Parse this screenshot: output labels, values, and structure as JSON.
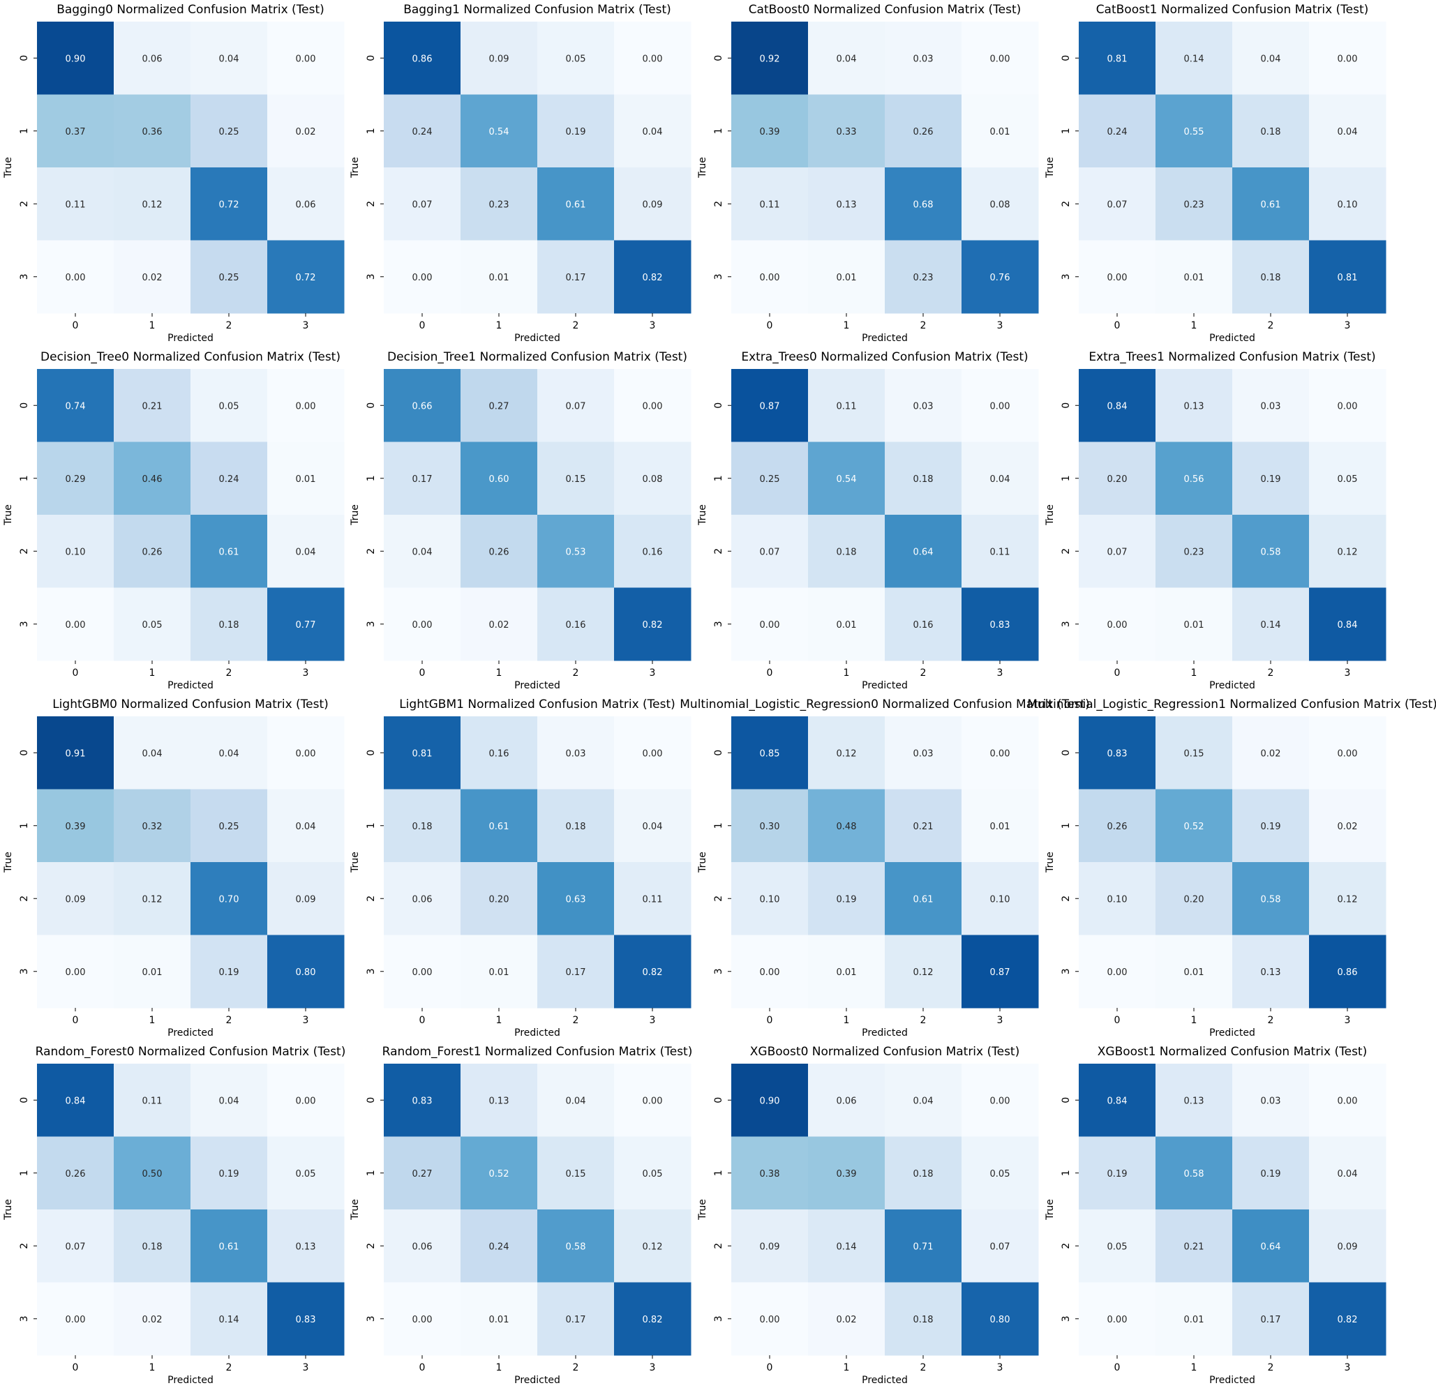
{
  "chart_data": [
    {
      "type": "heatmap",
      "title": "Bagging0 Normalized Confusion Matrix (Test)",
      "xlabel": "Predicted",
      "ylabel": "True",
      "x_ticks": [
        "0",
        "1",
        "2",
        "3"
      ],
      "y_ticks": [
        "0",
        "1",
        "2",
        "3"
      ],
      "colormap": "Blues",
      "value_range": [
        0,
        1
      ],
      "values": [
        [
          0.9,
          0.06,
          0.04,
          0.0
        ],
        [
          0.37,
          0.36,
          0.25,
          0.02
        ],
        [
          0.11,
          0.12,
          0.72,
          0.06
        ],
        [
          0.0,
          0.02,
          0.25,
          0.72
        ]
      ],
      "labels": [
        [
          "0.90",
          "0.06",
          "0.04",
          "0.00"
        ],
        [
          "0.37",
          "0.36",
          "0.25",
          "0.02"
        ],
        [
          "0.11",
          "0.12",
          "0.72",
          "0.06"
        ],
        [
          "0.00",
          "0.02",
          "0.25",
          "0.72"
        ]
      ]
    },
    {
      "type": "heatmap",
      "title": "Bagging1 Normalized Confusion Matrix (Test)",
      "xlabel": "Predicted",
      "ylabel": "True",
      "x_ticks": [
        "0",
        "1",
        "2",
        "3"
      ],
      "y_ticks": [
        "0",
        "1",
        "2",
        "3"
      ],
      "colormap": "Blues",
      "value_range": [
        0,
        1
      ],
      "values": [
        [
          0.86,
          0.09,
          0.05,
          0.0
        ],
        [
          0.24,
          0.54,
          0.19,
          0.04
        ],
        [
          0.07,
          0.23,
          0.61,
          0.09
        ],
        [
          0.0,
          0.01,
          0.17,
          0.82
        ]
      ],
      "labels": [
        [
          "0.86",
          "0.09",
          "0.05",
          "0.00"
        ],
        [
          "0.24",
          "0.54",
          "0.19",
          "0.04"
        ],
        [
          "0.07",
          "0.23",
          "0.61",
          "0.09"
        ],
        [
          "0.00",
          "0.01",
          "0.17",
          "0.82"
        ]
      ]
    },
    {
      "type": "heatmap",
      "title": "CatBoost0 Normalized Confusion Matrix (Test)",
      "xlabel": "Predicted",
      "ylabel": "True",
      "x_ticks": [
        "0",
        "1",
        "2",
        "3"
      ],
      "y_ticks": [
        "0",
        "1",
        "2",
        "3"
      ],
      "colormap": "Blues",
      "value_range": [
        0,
        1
      ],
      "values": [
        [
          0.92,
          0.04,
          0.03,
          0.0
        ],
        [
          0.39,
          0.33,
          0.26,
          0.01
        ],
        [
          0.11,
          0.13,
          0.68,
          0.08
        ],
        [
          0.0,
          0.01,
          0.23,
          0.76
        ]
      ],
      "labels": [
        [
          "0.92",
          "0.04",
          "0.03",
          "0.00"
        ],
        [
          "0.39",
          "0.33",
          "0.26",
          "0.01"
        ],
        [
          "0.11",
          "0.13",
          "0.68",
          "0.08"
        ],
        [
          "0.00",
          "0.01",
          "0.23",
          "0.76"
        ]
      ]
    },
    {
      "type": "heatmap",
      "title": "CatBoost1 Normalized Confusion Matrix (Test)",
      "xlabel": "Predicted",
      "ylabel": "True",
      "x_ticks": [
        "0",
        "1",
        "2",
        "3"
      ],
      "y_ticks": [
        "0",
        "1",
        "2",
        "3"
      ],
      "colormap": "Blues",
      "value_range": [
        0,
        1
      ],
      "values": [
        [
          0.81,
          0.14,
          0.04,
          0.0
        ],
        [
          0.24,
          0.55,
          0.18,
          0.04
        ],
        [
          0.07,
          0.23,
          0.61,
          0.1
        ],
        [
          0.0,
          0.01,
          0.18,
          0.81
        ]
      ],
      "labels": [
        [
          "0.81",
          "0.14",
          "0.04",
          "0.00"
        ],
        [
          "0.24",
          "0.55",
          "0.18",
          "0.04"
        ],
        [
          "0.07",
          "0.23",
          "0.61",
          "0.10"
        ],
        [
          "0.00",
          "0.01",
          "0.18",
          "0.81"
        ]
      ]
    },
    {
      "type": "heatmap",
      "title": "Decision_Tree0 Normalized Confusion Matrix (Test)",
      "xlabel": "Predicted",
      "ylabel": "True",
      "x_ticks": [
        "0",
        "1",
        "2",
        "3"
      ],
      "y_ticks": [
        "0",
        "1",
        "2",
        "3"
      ],
      "colormap": "Blues",
      "value_range": [
        0,
        1
      ],
      "values": [
        [
          0.74,
          0.21,
          0.05,
          0.0
        ],
        [
          0.29,
          0.46,
          0.24,
          0.01
        ],
        [
          0.1,
          0.26,
          0.61,
          0.04
        ],
        [
          0.0,
          0.05,
          0.18,
          0.77
        ]
      ],
      "labels": [
        [
          "0.74",
          "0.21",
          "0.05",
          "0.00"
        ],
        [
          "0.29",
          "0.46",
          "0.24",
          "0.01"
        ],
        [
          "0.10",
          "0.26",
          "0.61",
          "0.04"
        ],
        [
          "0.00",
          "0.05",
          "0.18",
          "0.77"
        ]
      ]
    },
    {
      "type": "heatmap",
      "title": "Decision_Tree1 Normalized Confusion Matrix (Test)",
      "xlabel": "Predicted",
      "ylabel": "True",
      "x_ticks": [
        "0",
        "1",
        "2",
        "3"
      ],
      "y_ticks": [
        "0",
        "1",
        "2",
        "3"
      ],
      "colormap": "Blues",
      "value_range": [
        0,
        1
      ],
      "values": [
        [
          0.66,
          0.27,
          0.07,
          0.0
        ],
        [
          0.17,
          0.6,
          0.15,
          0.08
        ],
        [
          0.04,
          0.26,
          0.53,
          0.16
        ],
        [
          0.0,
          0.02,
          0.16,
          0.82
        ]
      ],
      "labels": [
        [
          "0.66",
          "0.27",
          "0.07",
          "0.00"
        ],
        [
          "0.17",
          "0.60",
          "0.15",
          "0.08"
        ],
        [
          "0.04",
          "0.26",
          "0.53",
          "0.16"
        ],
        [
          "0.00",
          "0.02",
          "0.16",
          "0.82"
        ]
      ]
    },
    {
      "type": "heatmap",
      "title": "Extra_Trees0 Normalized Confusion Matrix (Test)",
      "xlabel": "Predicted",
      "ylabel": "True",
      "x_ticks": [
        "0",
        "1",
        "2",
        "3"
      ],
      "y_ticks": [
        "0",
        "1",
        "2",
        "3"
      ],
      "colormap": "Blues",
      "value_range": [
        0,
        1
      ],
      "values": [
        [
          0.87,
          0.11,
          0.03,
          0.0
        ],
        [
          0.25,
          0.54,
          0.18,
          0.04
        ],
        [
          0.07,
          0.18,
          0.64,
          0.11
        ],
        [
          0.0,
          0.01,
          0.16,
          0.83
        ]
      ],
      "labels": [
        [
          "0.87",
          "0.11",
          "0.03",
          "0.00"
        ],
        [
          "0.25",
          "0.54",
          "0.18",
          "0.04"
        ],
        [
          "0.07",
          "0.18",
          "0.64",
          "0.11"
        ],
        [
          "0.00",
          "0.01",
          "0.16",
          "0.83"
        ]
      ]
    },
    {
      "type": "heatmap",
      "title": "Extra_Trees1 Normalized Confusion Matrix (Test)",
      "xlabel": "Predicted",
      "ylabel": "True",
      "x_ticks": [
        "0",
        "1",
        "2",
        "3"
      ],
      "y_ticks": [
        "0",
        "1",
        "2",
        "3"
      ],
      "colormap": "Blues",
      "value_range": [
        0,
        1
      ],
      "values": [
        [
          0.84,
          0.13,
          0.03,
          0.0
        ],
        [
          0.2,
          0.56,
          0.19,
          0.05
        ],
        [
          0.07,
          0.23,
          0.58,
          0.12
        ],
        [
          0.0,
          0.01,
          0.14,
          0.84
        ]
      ],
      "labels": [
        [
          "0.84",
          "0.13",
          "0.03",
          "0.00"
        ],
        [
          "0.20",
          "0.56",
          "0.19",
          "0.05"
        ],
        [
          "0.07",
          "0.23",
          "0.58",
          "0.12"
        ],
        [
          "0.00",
          "0.01",
          "0.14",
          "0.84"
        ]
      ]
    },
    {
      "type": "heatmap",
      "title": "LightGBM0 Normalized Confusion Matrix (Test)",
      "xlabel": "Predicted",
      "ylabel": "True",
      "x_ticks": [
        "0",
        "1",
        "2",
        "3"
      ],
      "y_ticks": [
        "0",
        "1",
        "2",
        "3"
      ],
      "colormap": "Blues",
      "value_range": [
        0,
        1
      ],
      "values": [
        [
          0.91,
          0.04,
          0.04,
          0.0
        ],
        [
          0.39,
          0.32,
          0.25,
          0.04
        ],
        [
          0.09,
          0.12,
          0.7,
          0.09
        ],
        [
          0.0,
          0.01,
          0.19,
          0.8
        ]
      ],
      "labels": [
        [
          "0.91",
          "0.04",
          "0.04",
          "0.00"
        ],
        [
          "0.39",
          "0.32",
          "0.25",
          "0.04"
        ],
        [
          "0.09",
          "0.12",
          "0.70",
          "0.09"
        ],
        [
          "0.00",
          "0.01",
          "0.19",
          "0.80"
        ]
      ]
    },
    {
      "type": "heatmap",
      "title": "LightGBM1 Normalized Confusion Matrix (Test)",
      "xlabel": "Predicted",
      "ylabel": "True",
      "x_ticks": [
        "0",
        "1",
        "2",
        "3"
      ],
      "y_ticks": [
        "0",
        "1",
        "2",
        "3"
      ],
      "colormap": "Blues",
      "value_range": [
        0,
        1
      ],
      "values": [
        [
          0.81,
          0.16,
          0.03,
          0.0
        ],
        [
          0.18,
          0.61,
          0.18,
          0.04
        ],
        [
          0.06,
          0.2,
          0.63,
          0.11
        ],
        [
          0.0,
          0.01,
          0.17,
          0.82
        ]
      ],
      "labels": [
        [
          "0.81",
          "0.16",
          "0.03",
          "0.00"
        ],
        [
          "0.18",
          "0.61",
          "0.18",
          "0.04"
        ],
        [
          "0.06",
          "0.20",
          "0.63",
          "0.11"
        ],
        [
          "0.00",
          "0.01",
          "0.17",
          "0.82"
        ]
      ]
    },
    {
      "type": "heatmap",
      "title": "Multinomial_Logistic_Regression0 Normalized Confusion Matrix (Test)",
      "xlabel": "Predicted",
      "ylabel": "True",
      "x_ticks": [
        "0",
        "1",
        "2",
        "3"
      ],
      "y_ticks": [
        "0",
        "1",
        "2",
        "3"
      ],
      "colormap": "Blues",
      "value_range": [
        0,
        1
      ],
      "values": [
        [
          0.85,
          0.12,
          0.03,
          0.0
        ],
        [
          0.3,
          0.48,
          0.21,
          0.01
        ],
        [
          0.1,
          0.19,
          0.61,
          0.1
        ],
        [
          0.0,
          0.01,
          0.12,
          0.87
        ]
      ],
      "labels": [
        [
          "0.85",
          "0.12",
          "0.03",
          "0.00"
        ],
        [
          "0.30",
          "0.48",
          "0.21",
          "0.01"
        ],
        [
          "0.10",
          "0.19",
          "0.61",
          "0.10"
        ],
        [
          "0.00",
          "0.01",
          "0.12",
          "0.87"
        ]
      ]
    },
    {
      "type": "heatmap",
      "title": "Multinomial_Logistic_Regression1 Normalized Confusion Matrix (Test)",
      "xlabel": "Predicted",
      "ylabel": "True",
      "x_ticks": [
        "0",
        "1",
        "2",
        "3"
      ],
      "y_ticks": [
        "0",
        "1",
        "2",
        "3"
      ],
      "colormap": "Blues",
      "value_range": [
        0,
        1
      ],
      "values": [
        [
          0.83,
          0.15,
          0.02,
          0.0
        ],
        [
          0.26,
          0.52,
          0.19,
          0.02
        ],
        [
          0.1,
          0.2,
          0.58,
          0.12
        ],
        [
          0.0,
          0.01,
          0.13,
          0.86
        ]
      ],
      "labels": [
        [
          "0.83",
          "0.15",
          "0.02",
          "0.00"
        ],
        [
          "0.26",
          "0.52",
          "0.19",
          "0.02"
        ],
        [
          "0.10",
          "0.20",
          "0.58",
          "0.12"
        ],
        [
          "0.00",
          "0.01",
          "0.13",
          "0.86"
        ]
      ]
    },
    {
      "type": "heatmap",
      "title": "Random_Forest0 Normalized Confusion Matrix (Test)",
      "xlabel": "Predicted",
      "ylabel": "True",
      "x_ticks": [
        "0",
        "1",
        "2",
        "3"
      ],
      "y_ticks": [
        "0",
        "1",
        "2",
        "3"
      ],
      "colormap": "Blues",
      "value_range": [
        0,
        1
      ],
      "values": [
        [
          0.84,
          0.11,
          0.04,
          0.0
        ],
        [
          0.26,
          0.5,
          0.19,
          0.05
        ],
        [
          0.07,
          0.18,
          0.61,
          0.13
        ],
        [
          0.0,
          0.02,
          0.14,
          0.83
        ]
      ],
      "labels": [
        [
          "0.84",
          "0.11",
          "0.04",
          "0.00"
        ],
        [
          "0.26",
          "0.50",
          "0.19",
          "0.05"
        ],
        [
          "0.07",
          "0.18",
          "0.61",
          "0.13"
        ],
        [
          "0.00",
          "0.02",
          "0.14",
          "0.83"
        ]
      ]
    },
    {
      "type": "heatmap",
      "title": "Random_Forest1 Normalized Confusion Matrix (Test)",
      "xlabel": "Predicted",
      "ylabel": "True",
      "x_ticks": [
        "0",
        "1",
        "2",
        "3"
      ],
      "y_ticks": [
        "0",
        "1",
        "2",
        "3"
      ],
      "colormap": "Blues",
      "value_range": [
        0,
        1
      ],
      "values": [
        [
          0.83,
          0.13,
          0.04,
          0.0
        ],
        [
          0.27,
          0.52,
          0.15,
          0.05
        ],
        [
          0.06,
          0.24,
          0.58,
          0.12
        ],
        [
          0.0,
          0.01,
          0.17,
          0.82
        ]
      ],
      "labels": [
        [
          "0.83",
          "0.13",
          "0.04",
          "0.00"
        ],
        [
          "0.27",
          "0.52",
          "0.15",
          "0.05"
        ],
        [
          "0.06",
          "0.24",
          "0.58",
          "0.12"
        ],
        [
          "0.00",
          "0.01",
          "0.17",
          "0.82"
        ]
      ]
    },
    {
      "type": "heatmap",
      "title": "XGBoost0 Normalized Confusion Matrix (Test)",
      "xlabel": "Predicted",
      "ylabel": "True",
      "x_ticks": [
        "0",
        "1",
        "2",
        "3"
      ],
      "y_ticks": [
        "0",
        "1",
        "2",
        "3"
      ],
      "colormap": "Blues",
      "value_range": [
        0,
        1
      ],
      "values": [
        [
          0.9,
          0.06,
          0.04,
          0.0
        ],
        [
          0.38,
          0.39,
          0.18,
          0.05
        ],
        [
          0.09,
          0.14,
          0.71,
          0.07
        ],
        [
          0.0,
          0.02,
          0.18,
          0.8
        ]
      ],
      "labels": [
        [
          "0.90",
          "0.06",
          "0.04",
          "0.00"
        ],
        [
          "0.38",
          "0.39",
          "0.18",
          "0.05"
        ],
        [
          "0.09",
          "0.14",
          "0.71",
          "0.07"
        ],
        [
          "0.00",
          "0.02",
          "0.18",
          "0.80"
        ]
      ]
    },
    {
      "type": "heatmap",
      "title": "XGBoost1 Normalized Confusion Matrix (Test)",
      "xlabel": "Predicted",
      "ylabel": "True",
      "x_ticks": [
        "0",
        "1",
        "2",
        "3"
      ],
      "y_ticks": [
        "0",
        "1",
        "2",
        "3"
      ],
      "colormap": "Blues",
      "value_range": [
        0,
        1
      ],
      "values": [
        [
          0.84,
          0.13,
          0.03,
          0.0
        ],
        [
          0.19,
          0.58,
          0.19,
          0.04
        ],
        [
          0.05,
          0.21,
          0.64,
          0.09
        ],
        [
          0.0,
          0.01,
          0.17,
          0.82
        ]
      ],
      "labels": [
        [
          "0.84",
          "0.13",
          "0.03",
          "0.00"
        ],
        [
          "0.19",
          "0.58",
          "0.19",
          "0.04"
        ],
        [
          "0.05",
          "0.21",
          "0.64",
          "0.09"
        ],
        [
          "0.00",
          "0.01",
          "0.17",
          "0.82"
        ]
      ]
    }
  ]
}
